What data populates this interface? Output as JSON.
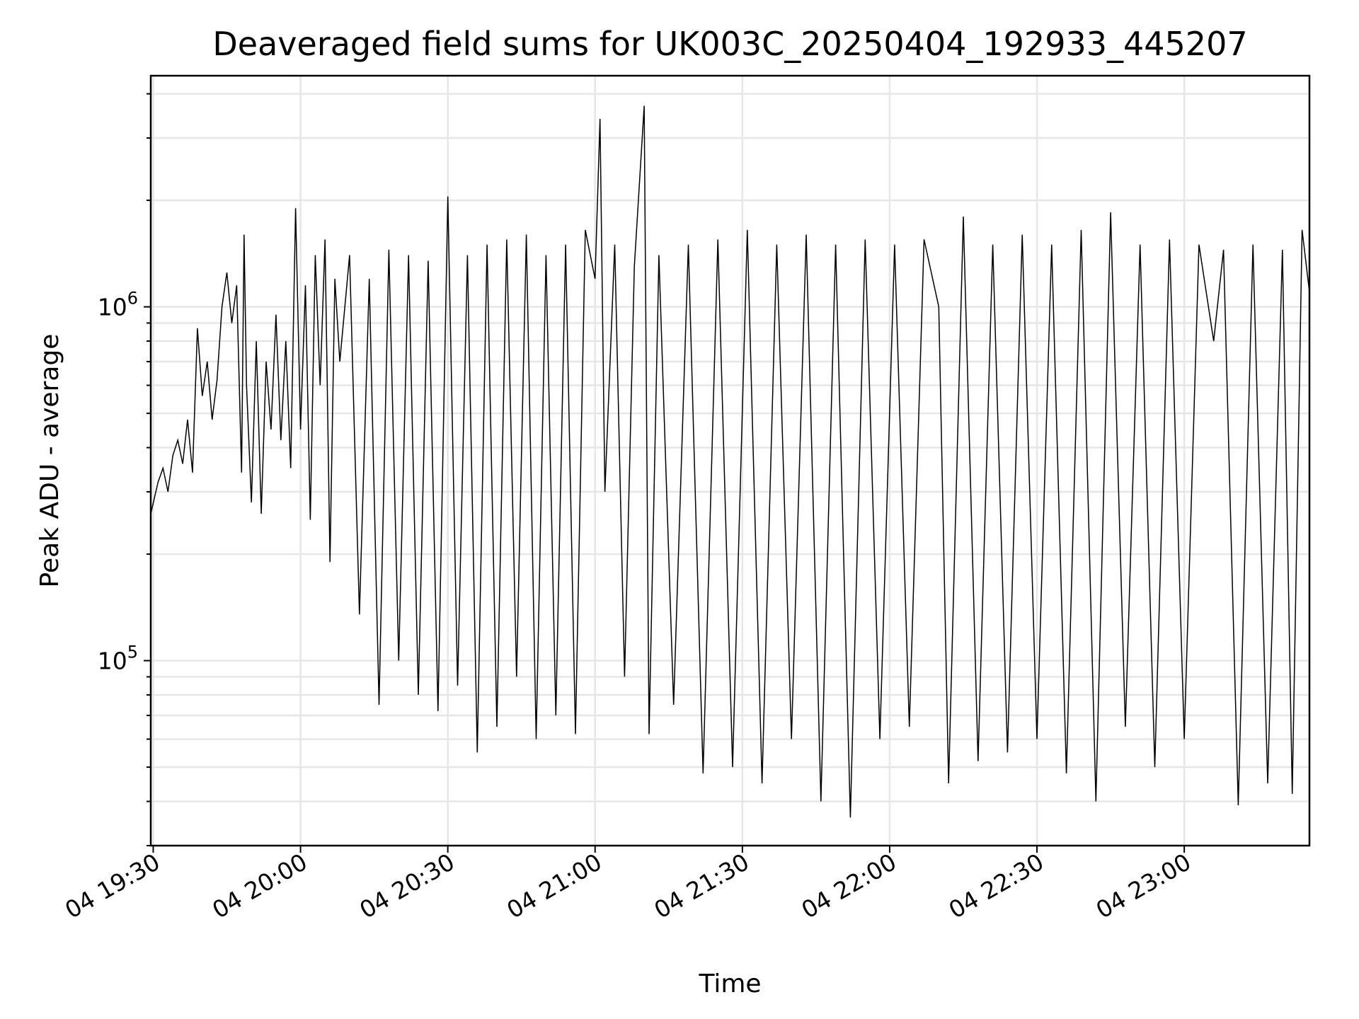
{
  "chart_data": {
    "type": "line",
    "title": "Deaveraged field sums for UK003C_20250404_192933_445207",
    "xlabel": "Time",
    "ylabel": "Peak ADU - average",
    "y_scale": "log",
    "ylim": [
      30000,
      4500000
    ],
    "xlim": [
      "2025-04-04 19:29:30",
      "2025-04-04 23:25:30"
    ],
    "x_ticks": [
      "04 19:30",
      "04 20:00",
      "04 20:30",
      "04 21:00",
      "04 21:30",
      "04 22:00",
      "04 22:30",
      "04 23:00"
    ],
    "y_ticks": [
      {
        "value": 100000,
        "base": "10",
        "exp": "5"
      },
      {
        "value": 1000000,
        "base": "10",
        "exp": "6"
      }
    ],
    "grid": true,
    "line_color": "#000000",
    "series": [
      {
        "points": [
          [
            "2025-04-04 19:29:30",
            260000
          ],
          [
            "2025-04-04 19:31:00",
            320000
          ],
          [
            "2025-04-04 19:32:00",
            350000
          ],
          [
            "2025-04-04 19:33:00",
            300000
          ],
          [
            "2025-04-04 19:34:00",
            380000
          ],
          [
            "2025-04-04 19:35:00",
            420000
          ],
          [
            "2025-04-04 19:36:00",
            360000
          ],
          [
            "2025-04-04 19:37:00",
            480000
          ],
          [
            "2025-04-04 19:38:00",
            340000
          ],
          [
            "2025-04-04 19:39:00",
            870000
          ],
          [
            "2025-04-04 19:40:00",
            560000
          ],
          [
            "2025-04-04 19:41:00",
            700000
          ],
          [
            "2025-04-04 19:42:00",
            480000
          ],
          [
            "2025-04-04 19:43:00",
            620000
          ],
          [
            "2025-04-04 19:44:00",
            1000000
          ],
          [
            "2025-04-04 19:45:00",
            1250000
          ],
          [
            "2025-04-04 19:46:00",
            900000
          ],
          [
            "2025-04-04 19:47:00",
            1150000
          ],
          [
            "2025-04-04 19:48:00",
            340000
          ],
          [
            "2025-04-04 19:48:30",
            1600000
          ],
          [
            "2025-04-04 19:49:00",
            600000
          ],
          [
            "2025-04-04 19:50:00",
            280000
          ],
          [
            "2025-04-04 19:51:00",
            800000
          ],
          [
            "2025-04-04 19:52:00",
            260000
          ],
          [
            "2025-04-04 19:53:00",
            700000
          ],
          [
            "2025-04-04 19:54:00",
            450000
          ],
          [
            "2025-04-04 19:55:00",
            950000
          ],
          [
            "2025-04-04 19:56:00",
            420000
          ],
          [
            "2025-04-04 19:57:00",
            800000
          ],
          [
            "2025-04-04 19:58:00",
            350000
          ],
          [
            "2025-04-04 19:59:00",
            1900000
          ],
          [
            "2025-04-04 20:00:00",
            450000
          ],
          [
            "2025-04-04 20:01:00",
            1150000
          ],
          [
            "2025-04-04 20:02:00",
            250000
          ],
          [
            "2025-04-04 20:03:00",
            1400000
          ],
          [
            "2025-04-04 20:04:00",
            600000
          ],
          [
            "2025-04-04 20:05:00",
            1550000
          ],
          [
            "2025-04-04 20:06:00",
            190000
          ],
          [
            "2025-04-04 20:07:00",
            1200000
          ],
          [
            "2025-04-04 20:08:00",
            700000
          ],
          [
            "2025-04-04 20:10:00",
            1400000
          ],
          [
            "2025-04-04 20:12:00",
            135000
          ],
          [
            "2025-04-04 20:14:00",
            1200000
          ],
          [
            "2025-04-04 20:16:00",
            75000
          ],
          [
            "2025-04-04 20:18:00",
            1450000
          ],
          [
            "2025-04-04 20:20:00",
            100000
          ],
          [
            "2025-04-04 20:22:00",
            1400000
          ],
          [
            "2025-04-04 20:24:00",
            80000
          ],
          [
            "2025-04-04 20:26:00",
            1350000
          ],
          [
            "2025-04-04 20:28:00",
            72000
          ],
          [
            "2025-04-04 20:30:00",
            2050000
          ],
          [
            "2025-04-04 20:32:00",
            85000
          ],
          [
            "2025-04-04 20:34:00",
            1400000
          ],
          [
            "2025-04-04 20:36:00",
            55000
          ],
          [
            "2025-04-04 20:38:00",
            1500000
          ],
          [
            "2025-04-04 20:40:00",
            65000
          ],
          [
            "2025-04-04 20:42:00",
            1550000
          ],
          [
            "2025-04-04 20:44:00",
            90000
          ],
          [
            "2025-04-04 20:46:00",
            1600000
          ],
          [
            "2025-04-04 20:48:00",
            60000
          ],
          [
            "2025-04-04 20:50:00",
            1400000
          ],
          [
            "2025-04-04 20:52:00",
            70000
          ],
          [
            "2025-04-04 20:54:00",
            1500000
          ],
          [
            "2025-04-04 20:56:00",
            62000
          ],
          [
            "2025-04-04 20:58:00",
            1650000
          ],
          [
            "2025-04-04 21:00:00",
            1200000
          ],
          [
            "2025-04-04 21:01:00",
            3400000
          ],
          [
            "2025-04-04 21:02:00",
            300000
          ],
          [
            "2025-04-04 21:04:00",
            1500000
          ],
          [
            "2025-04-04 21:06:00",
            90000
          ],
          [
            "2025-04-04 21:08:00",
            1300000
          ],
          [
            "2025-04-04 21:10:00",
            3700000
          ],
          [
            "2025-04-04 21:11:00",
            62000
          ],
          [
            "2025-04-04 21:13:00",
            1400000
          ],
          [
            "2025-04-04 21:16:00",
            75000
          ],
          [
            "2025-04-04 21:19:00",
            1500000
          ],
          [
            "2025-04-04 21:22:00",
            48000
          ],
          [
            "2025-04-04 21:25:00",
            1550000
          ],
          [
            "2025-04-04 21:28:00",
            50000
          ],
          [
            "2025-04-04 21:31:00",
            1650000
          ],
          [
            "2025-04-04 21:34:00",
            45000
          ],
          [
            "2025-04-04 21:37:00",
            1500000
          ],
          [
            "2025-04-04 21:40:00",
            60000
          ],
          [
            "2025-04-04 21:43:00",
            1600000
          ],
          [
            "2025-04-04 21:46:00",
            40000
          ],
          [
            "2025-04-04 21:49:00",
            1500000
          ],
          [
            "2025-04-04 21:52:00",
            36000
          ],
          [
            "2025-04-04 21:55:00",
            1550000
          ],
          [
            "2025-04-04 21:58:00",
            60000
          ],
          [
            "2025-04-04 22:01:00",
            1500000
          ],
          [
            "2025-04-04 22:04:00",
            65000
          ],
          [
            "2025-04-04 22:07:00",
            1550000
          ],
          [
            "2025-04-04 22:10:00",
            1000000
          ],
          [
            "2025-04-04 22:12:00",
            45000
          ],
          [
            "2025-04-04 22:15:00",
            1800000
          ],
          [
            "2025-04-04 22:18:00",
            52000
          ],
          [
            "2025-04-04 22:21:00",
            1500000
          ],
          [
            "2025-04-04 22:24:00",
            55000
          ],
          [
            "2025-04-04 22:27:00",
            1600000
          ],
          [
            "2025-04-04 22:30:00",
            60000
          ],
          [
            "2025-04-04 22:33:00",
            1500000
          ],
          [
            "2025-04-04 22:36:00",
            48000
          ],
          [
            "2025-04-04 22:39:00",
            1650000
          ],
          [
            "2025-04-04 22:42:00",
            40000
          ],
          [
            "2025-04-04 22:45:00",
            1850000
          ],
          [
            "2025-04-04 22:48:00",
            65000
          ],
          [
            "2025-04-04 22:51:00",
            1500000
          ],
          [
            "2025-04-04 22:54:00",
            50000
          ],
          [
            "2025-04-04 22:57:00",
            1550000
          ],
          [
            "2025-04-04 23:00:00",
            60000
          ],
          [
            "2025-04-04 23:03:00",
            1500000
          ],
          [
            "2025-04-04 23:06:00",
            800000
          ],
          [
            "2025-04-04 23:08:00",
            1450000
          ],
          [
            "2025-04-04 23:11:00",
            39000
          ],
          [
            "2025-04-04 23:14:00",
            1500000
          ],
          [
            "2025-04-04 23:17:00",
            45000
          ],
          [
            "2025-04-04 23:20:00",
            1450000
          ],
          [
            "2025-04-04 23:22:00",
            42000
          ],
          [
            "2025-04-04 23:24:00",
            1650000
          ],
          [
            "2025-04-04 23:25:30",
            1100000
          ]
        ]
      }
    ]
  }
}
